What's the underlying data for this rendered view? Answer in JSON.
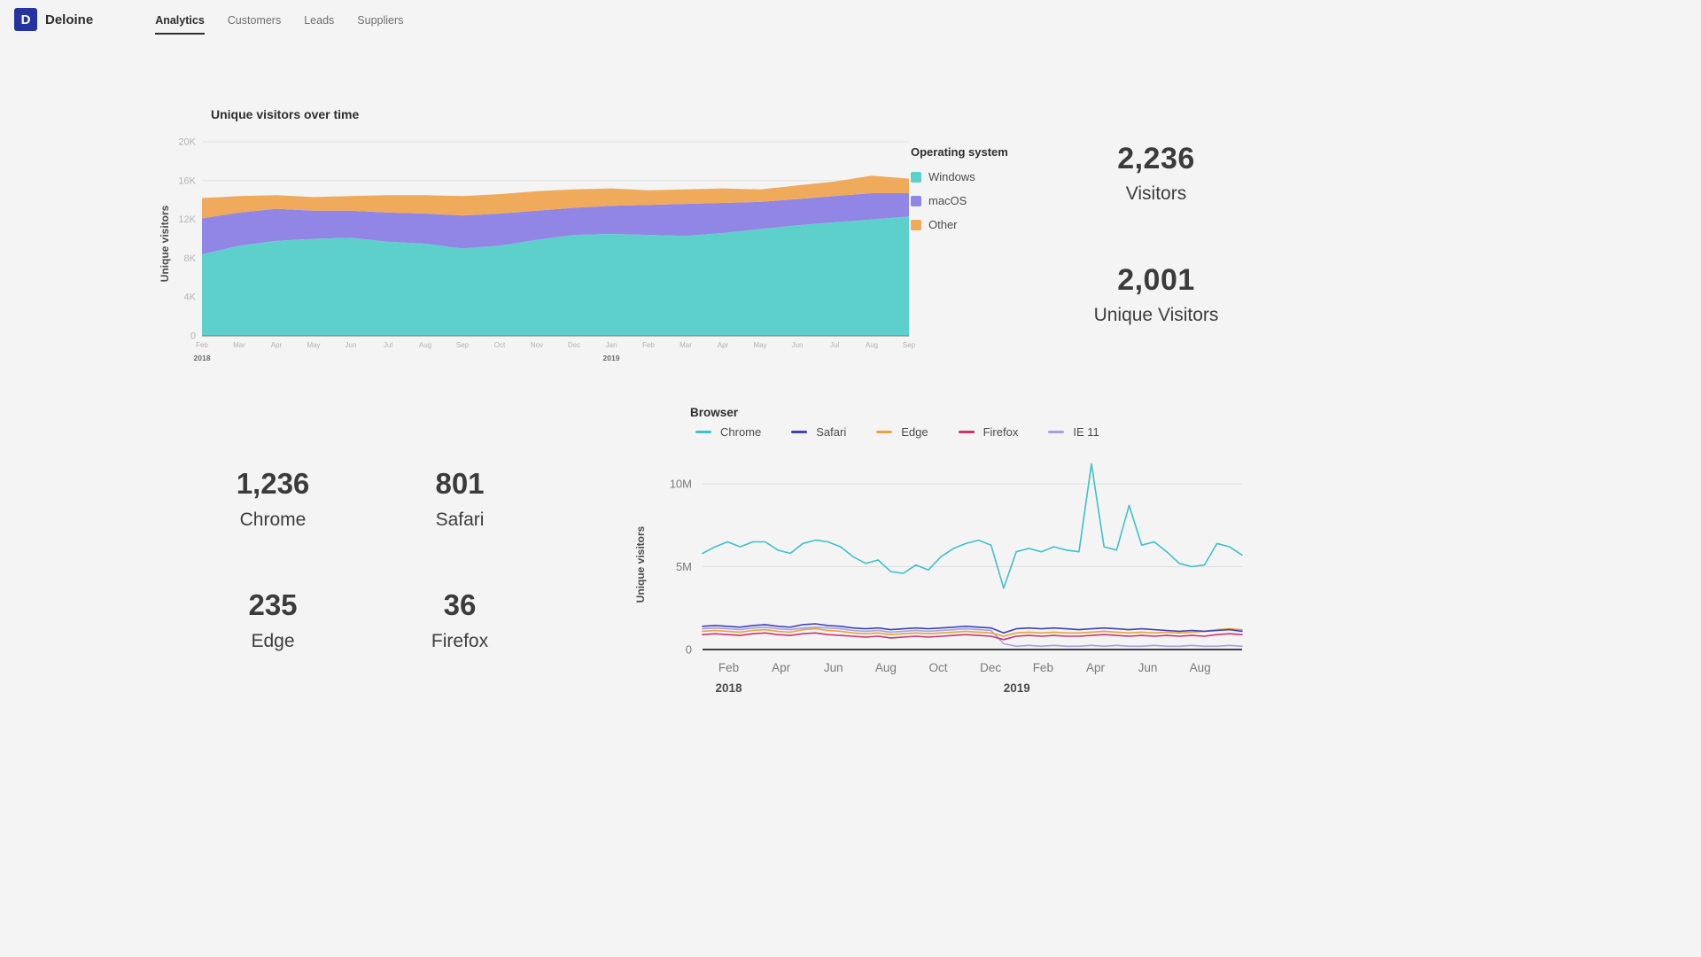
{
  "brand": {
    "name": "Deloine",
    "logo_letter": "D",
    "logo_color": "#2533a0"
  },
  "nav": {
    "items": [
      {
        "label": "Analytics",
        "active": true
      },
      {
        "label": "Customers",
        "active": false
      },
      {
        "label": "Leads",
        "active": false
      },
      {
        "label": "Suppliers",
        "active": false
      }
    ]
  },
  "os_section": {
    "title": "Unique visitors over time",
    "ylabel": "Unique visitors",
    "legend_title": "Operating system"
  },
  "summary": {
    "visitors": {
      "value": "2,236",
      "label": "Visitors"
    },
    "unique": {
      "value": "2,001",
      "label": "Unique Visitors"
    }
  },
  "browser_totals": {
    "items": [
      {
        "value": "1,236",
        "label": "Chrome"
      },
      {
        "value": "801",
        "label": "Safari"
      },
      {
        "value": "235",
        "label": "Edge"
      },
      {
        "value": "36",
        "label": "Firefox"
      }
    ]
  },
  "browser_section": {
    "title": "Browser",
    "ylabel": "Unique visitors"
  },
  "chart_data": [
    {
      "type": "area",
      "stacked": true,
      "title": "Unique visitors over time",
      "xlabel": "",
      "ylabel": "Unique visitors",
      "unit": "K",
      "ylim": [
        0,
        20
      ],
      "grid": true,
      "legend_title": "Operating system",
      "legend_position": "right",
      "yticks": [
        {
          "value": 0,
          "label": "0"
        },
        {
          "value": 4,
          "label": "4K"
        },
        {
          "value": 8,
          "label": "8K"
        },
        {
          "value": 12,
          "label": "12K"
        },
        {
          "value": 16,
          "label": "16K"
        },
        {
          "value": 20,
          "label": "20K"
        }
      ],
      "categories": [
        "Feb",
        "Mar",
        "Apr",
        "May",
        "Jun",
        "Jul",
        "Aug",
        "Sep",
        "Oct",
        "Nov",
        "Dec",
        "Jan",
        "Feb",
        "Mar",
        "Apr",
        "May",
        "Jun",
        "Jul",
        "Aug",
        "Sep"
      ],
      "year_labels": [
        {
          "index": 0,
          "label": "2018"
        },
        {
          "index": 11,
          "label": "2019"
        }
      ],
      "series": [
        {
          "name": "Windows",
          "color": "#5ed0cb",
          "values": [
            8.4,
            9.3,
            9.8,
            10.0,
            10.1,
            9.7,
            9.5,
            9.0,
            9.3,
            9.9,
            10.4,
            10.5,
            10.4,
            10.3,
            10.6,
            11.0,
            11.4,
            11.7,
            12.0,
            12.3
          ]
        },
        {
          "name": "macOS",
          "color": "#9186e6",
          "values": [
            3.7,
            3.4,
            3.3,
            2.9,
            2.8,
            3.0,
            3.1,
            3.4,
            3.3,
            3.0,
            2.8,
            2.9,
            3.1,
            3.3,
            3.1,
            2.8,
            2.7,
            2.7,
            2.7,
            2.4
          ]
        },
        {
          "name": "Other",
          "color": "#f0aa5c",
          "values": [
            2.1,
            1.7,
            1.4,
            1.4,
            1.5,
            1.8,
            1.9,
            2.0,
            2.0,
            2.0,
            1.9,
            1.8,
            1.5,
            1.5,
            1.5,
            1.3,
            1.4,
            1.5,
            1.8,
            1.5
          ]
        }
      ]
    },
    {
      "type": "line",
      "title": "Browser",
      "xlabel": "",
      "ylabel": "Unique visitors",
      "unit": "M",
      "ylim": [
        0,
        12
      ],
      "grid": true,
      "legend_position": "top",
      "yticks": [
        {
          "value": 0,
          "label": "0"
        },
        {
          "value": 5,
          "label": "5M"
        },
        {
          "value": 10,
          "label": "10M"
        }
      ],
      "month_span": 20.6,
      "xticks": [
        {
          "month": 1,
          "label": "Feb"
        },
        {
          "month": 3,
          "label": "Apr"
        },
        {
          "month": 5,
          "label": "Jun"
        },
        {
          "month": 7,
          "label": "Aug"
        },
        {
          "month": 9,
          "label": "Oct"
        },
        {
          "month": 11,
          "label": "Dec"
        },
        {
          "month": 13,
          "label": "Feb"
        },
        {
          "month": 15,
          "label": "Apr"
        },
        {
          "month": 17,
          "label": "Jun"
        },
        {
          "month": 19,
          "label": "Aug"
        }
      ],
      "year_ticks": [
        {
          "month": 1,
          "label": "2018"
        },
        {
          "month": 12,
          "label": "2019"
        }
      ],
      "series": [
        {
          "name": "Chrome",
          "color": "#3ec2c5",
          "values": [
            5.8,
            6.2,
            6.5,
            6.2,
            6.5,
            6.5,
            6.0,
            5.8,
            6.4,
            6.6,
            6.5,
            6.2,
            5.6,
            5.2,
            5.4,
            4.7,
            4.6,
            5.1,
            4.8,
            5.6,
            6.1,
            6.4,
            6.6,
            6.3,
            3.7,
            5.9,
            6.1,
            5.9,
            6.2,
            6.0,
            5.9,
            11.2,
            6.2,
            6.0,
            8.7,
            6.3,
            6.5,
            5.9,
            5.2,
            5.0,
            5.1,
            6.4,
            6.2,
            5.7
          ]
        },
        {
          "name": "Safari",
          "color": "#4043ba",
          "values": [
            1.4,
            1.45,
            1.4,
            1.35,
            1.45,
            1.5,
            1.4,
            1.35,
            1.5,
            1.55,
            1.45,
            1.4,
            1.3,
            1.25,
            1.3,
            1.2,
            1.25,
            1.3,
            1.25,
            1.3,
            1.35,
            1.4,
            1.35,
            1.3,
            1.0,
            1.25,
            1.3,
            1.25,
            1.3,
            1.25,
            1.2,
            1.25,
            1.3,
            1.25,
            1.2,
            1.25,
            1.2,
            1.15,
            1.1,
            1.15,
            1.1,
            1.15,
            1.2,
            1.1
          ]
        },
        {
          "name": "Edge",
          "color": "#e8a33d",
          "values": [
            1.1,
            1.15,
            1.1,
            1.05,
            1.15,
            1.2,
            1.1,
            1.05,
            1.2,
            1.25,
            1.15,
            1.1,
            1.0,
            0.95,
            1.0,
            0.9,
            0.95,
            1.0,
            0.95,
            1.0,
            1.05,
            1.1,
            1.05,
            1.0,
            0.8,
            1.0,
            1.05,
            1.0,
            1.05,
            1.0,
            1.0,
            1.05,
            1.1,
            1.05,
            1.0,
            1.05,
            1.0,
            1.05,
            1.0,
            1.05,
            1.1,
            1.2,
            1.25,
            1.2
          ]
        },
        {
          "name": "Firefox",
          "color": "#c9366f",
          "values": [
            0.9,
            0.95,
            0.9,
            0.85,
            0.95,
            1.0,
            0.9,
            0.85,
            0.95,
            1.0,
            0.9,
            0.85,
            0.8,
            0.75,
            0.8,
            0.7,
            0.75,
            0.8,
            0.75,
            0.8,
            0.85,
            0.9,
            0.85,
            0.8,
            0.6,
            0.8,
            0.85,
            0.8,
            0.85,
            0.8,
            0.8,
            0.85,
            0.9,
            0.85,
            0.8,
            0.85,
            0.8,
            0.85,
            0.8,
            0.85,
            0.8,
            0.9,
            0.95,
            0.9
          ]
        },
        {
          "name": "IE 11",
          "color": "#a79fe0",
          "values": [
            1.25,
            1.3,
            1.25,
            1.2,
            1.3,
            1.35,
            1.25,
            1.2,
            1.3,
            1.35,
            1.3,
            1.25,
            1.15,
            1.1,
            1.15,
            1.05,
            1.1,
            1.15,
            1.1,
            1.15,
            1.2,
            1.25,
            1.2,
            1.15,
            0.35,
            0.2,
            0.25,
            0.2,
            0.25,
            0.2,
            0.2,
            0.25,
            0.2,
            0.25,
            0.2,
            0.2,
            0.25,
            0.2,
            0.2,
            0.25,
            0.2,
            0.2,
            0.25,
            0.2
          ]
        }
      ]
    }
  ]
}
